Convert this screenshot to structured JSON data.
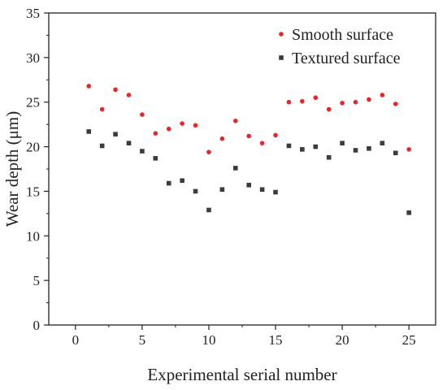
{
  "chart_data": {
    "type": "scatter",
    "xlabel": "Experimental serial number",
    "ylabel": "Wear depth (μm)",
    "xlim": [
      -2,
      27
    ],
    "ylim": [
      0,
      35
    ],
    "xticks": [
      0,
      5,
      10,
      15,
      20,
      25
    ],
    "yticks": [
      0,
      5,
      10,
      15,
      20,
      25,
      30,
      35
    ],
    "grid": false,
    "legend_position": "top-right",
    "series": [
      {
        "name": "Smooth surface",
        "marker": "circle",
        "color": "#e8252a",
        "x": [
          1,
          2,
          3,
          4,
          5,
          6,
          7,
          8,
          9,
          10,
          11,
          12,
          13,
          14,
          15,
          16,
          17,
          18,
          19,
          20,
          21,
          22,
          23,
          24,
          25
        ],
        "y": [
          26.8,
          24.2,
          26.4,
          25.8,
          23.6,
          21.5,
          22.0,
          22.6,
          22.4,
          19.4,
          20.9,
          22.9,
          21.2,
          20.4,
          21.3,
          25.0,
          25.1,
          25.5,
          24.2,
          24.9,
          25.0,
          25.3,
          25.8,
          24.8,
          19.7
        ]
      },
      {
        "name": "Textured surface",
        "marker": "square",
        "color": "#3c3c3c",
        "x": [
          1,
          2,
          3,
          4,
          5,
          6,
          7,
          8,
          9,
          10,
          11,
          12,
          13,
          14,
          15,
          16,
          17,
          18,
          19,
          20,
          21,
          22,
          23,
          24,
          25
        ],
        "y": [
          21.7,
          20.1,
          21.4,
          20.4,
          19.5,
          18.7,
          15.9,
          16.2,
          15.0,
          12.9,
          15.2,
          17.6,
          15.7,
          15.2,
          14.9,
          20.1,
          19.7,
          20.0,
          18.8,
          20.4,
          19.6,
          19.8,
          20.4,
          19.3,
          12.6
        ]
      }
    ]
  }
}
